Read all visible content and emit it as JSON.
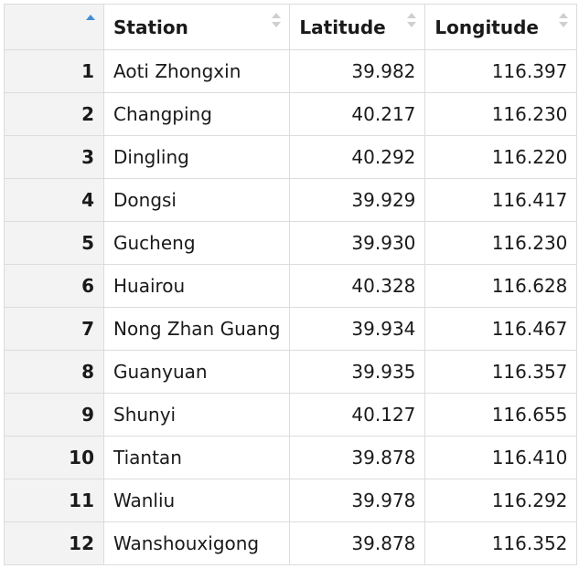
{
  "table": {
    "columns": [
      {
        "label": "",
        "sort_state": "ascending"
      },
      {
        "label": "Station",
        "sort_state": "none"
      },
      {
        "label": "Latitude",
        "sort_state": "none"
      },
      {
        "label": "Longitude",
        "sort_state": "none"
      }
    ],
    "rows": [
      {
        "index": "1",
        "station": "Aoti Zhongxin",
        "latitude": "39.982",
        "longitude": "116.397"
      },
      {
        "index": "2",
        "station": "Changping",
        "latitude": "40.217",
        "longitude": "116.230"
      },
      {
        "index": "3",
        "station": "Dingling",
        "latitude": "40.292",
        "longitude": "116.220"
      },
      {
        "index": "4",
        "station": "Dongsi",
        "latitude": "39.929",
        "longitude": "116.417"
      },
      {
        "index": "5",
        "station": "Gucheng",
        "latitude": "39.930",
        "longitude": "116.230"
      },
      {
        "index": "6",
        "station": "Huairou",
        "latitude": "40.328",
        "longitude": "116.628"
      },
      {
        "index": "7",
        "station": "Nong Zhan Guang",
        "latitude": "39.934",
        "longitude": "116.467"
      },
      {
        "index": "8",
        "station": "Guanyuan",
        "latitude": "39.935",
        "longitude": "116.357"
      },
      {
        "index": "9",
        "station": "Shunyi",
        "latitude": "40.127",
        "longitude": "116.655"
      },
      {
        "index": "10",
        "station": "Tiantan",
        "latitude": "39.878",
        "longitude": "116.410"
      },
      {
        "index": "11",
        "station": "Wanliu",
        "latitude": "39.978",
        "longitude": "116.292"
      },
      {
        "index": "12",
        "station": "Wanshouxigong",
        "latitude": "39.878",
        "longitude": "116.352"
      }
    ]
  },
  "colors": {
    "active_sort": "#3f8ed6",
    "inactive_sort": "#cfcfcf",
    "index_column_bg": "#f3f3f3",
    "border": "#dcdcdc"
  },
  "icons": {
    "sort_active": "sort-ascending-icon",
    "sort_inactive": "sort-unsorted-icon"
  }
}
